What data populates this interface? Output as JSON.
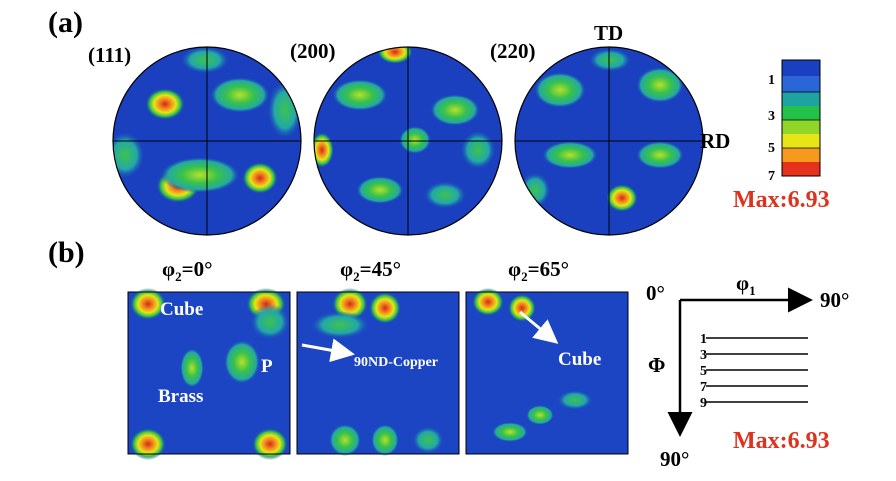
{
  "panel_a": {
    "label": "(a)",
    "pole_figures": [
      {
        "label": "(111)"
      },
      {
        "label": "(200)"
      },
      {
        "label": "(220)"
      }
    ],
    "axis_td": "TD",
    "axis_rd": "RD",
    "colorbar": {
      "ticks": [
        "1",
        "3",
        "5",
        "7"
      ],
      "max_label": "Max:6.93",
      "colors": [
        "#1a3fbf",
        "#2a66d8",
        "#1fa3a0",
        "#22c24a",
        "#8fd628",
        "#e6e617",
        "#f59a1c",
        "#e6311d"
      ]
    }
  },
  "panel_b": {
    "label": "(b)",
    "sections": [
      {
        "title_prefix": "φ",
        "title_sub": "2",
        "title_suffix": "=0°",
        "annotations": [
          "Cube",
          "Brass",
          "P"
        ]
      },
      {
        "title_prefix": "φ",
        "title_sub": "2",
        "title_suffix": "=45°",
        "annotations": [
          "90ND-Copper"
        ]
      },
      {
        "title_prefix": "φ",
        "title_sub": "2",
        "title_suffix": "=65°",
        "annotations": [
          "Cube"
        ]
      }
    ],
    "key": {
      "origin": "0°",
      "phi1_symbol": "φ",
      "phi1_sub": "1",
      "phi1_end": "90°",
      "Phi_symbol": "Φ",
      "Phi_end": "90°",
      "contour_levels": [
        "1",
        "3",
        "5",
        "7",
        "9"
      ],
      "max_label": "Max:6.93"
    }
  }
}
